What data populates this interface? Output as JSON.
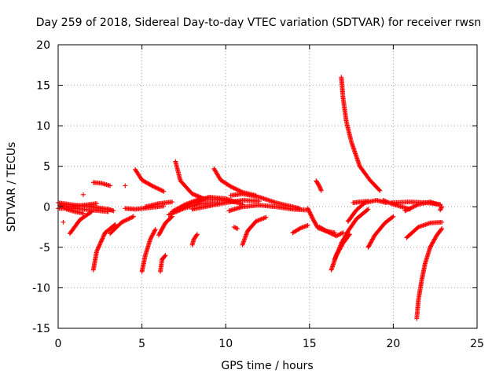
{
  "chart_data": {
    "type": "scatter",
    "title": "Day 259 of 2018, Sidereal Day-to-day VTEC variation (SDTVAR) for receiver rwsn",
    "xlabel": "GPS time / hours",
    "ylabel": "SDTVAR / TECUs",
    "xlim": [
      0,
      25
    ],
    "ylim": [
      -15,
      20
    ],
    "xticks": [
      0,
      5,
      10,
      15,
      20,
      25
    ],
    "yticks": [
      -15,
      -10,
      -5,
      0,
      5,
      10,
      15,
      20
    ],
    "grid": true,
    "marker": "+",
    "color": "#ff0000",
    "arcs": [
      {
        "name": "arc-1",
        "points": [
          [
            0.0,
            0.5
          ],
          [
            1.0,
            0.2
          ],
          [
            2.0,
            0.0
          ],
          [
            3.0,
            -0.3
          ],
          [
            3.3,
            -0.5
          ]
        ]
      },
      {
        "name": "arc-2",
        "points": [
          [
            0.0,
            -0.2
          ],
          [
            1.0,
            -0.2
          ],
          [
            2.0,
            -0.4
          ],
          [
            3.0,
            -0.6
          ]
        ]
      },
      {
        "name": "arc-3",
        "points": [
          [
            0.1,
            0.2
          ],
          [
            0.7,
            0.0
          ],
          [
            1.5,
            0.2
          ],
          [
            2.3,
            0.4
          ]
        ]
      },
      {
        "name": "arc-4",
        "points": [
          [
            0.5,
            -0.3
          ],
          [
            1.0,
            -0.6
          ],
          [
            1.5,
            -0.8
          ]
        ]
      },
      {
        "name": "arc-5",
        "points": [
          [
            0.7,
            -3.3
          ],
          [
            1.3,
            -1.6
          ],
          [
            2.0,
            -0.6
          ]
        ]
      },
      {
        "name": "arc-6",
        "points": [
          [
            2.1,
            -7.8
          ],
          [
            2.3,
            -5.5
          ],
          [
            2.8,
            -3.2
          ],
          [
            3.4,
            -2.2
          ]
        ]
      },
      {
        "name": "arc-7",
        "points": [
          [
            2.1,
            3.0
          ],
          [
            2.6,
            2.9
          ],
          [
            3.1,
            2.6
          ]
        ]
      },
      {
        "name": "arc-8",
        "points": [
          [
            3.1,
            -3.3
          ],
          [
            3.8,
            -1.9
          ],
          [
            4.5,
            -1.2
          ]
        ]
      },
      {
        "name": "arc-9",
        "points": [
          [
            4.0,
            -0.2
          ],
          [
            4.6,
            -0.3
          ],
          [
            5.5,
            -0.1
          ],
          [
            6.3,
            0.1
          ]
        ]
      },
      {
        "name": "arc-10",
        "points": [
          [
            4.6,
            4.6
          ],
          [
            5.0,
            3.3
          ],
          [
            5.6,
            2.6
          ],
          [
            6.3,
            1.9
          ]
        ]
      },
      {
        "name": "arc-11",
        "points": [
          [
            5.0,
            -8.0
          ],
          [
            5.2,
            -6.0
          ],
          [
            5.5,
            -4.0
          ],
          [
            5.8,
            -2.8
          ]
        ]
      },
      {
        "name": "arc-12",
        "points": [
          [
            5.2,
            0.0
          ],
          [
            6.0,
            0.4
          ],
          [
            6.8,
            0.6
          ]
        ]
      },
      {
        "name": "arc-13",
        "points": [
          [
            6.0,
            -3.5
          ],
          [
            6.4,
            -2.0
          ],
          [
            6.8,
            -1.2
          ]
        ]
      },
      {
        "name": "arc-14",
        "points": [
          [
            6.1,
            -8.0
          ],
          [
            6.2,
            -6.5
          ],
          [
            6.4,
            -6.0
          ]
        ]
      },
      {
        "name": "arc-15",
        "points": [
          [
            7.0,
            5.6
          ],
          [
            7.3,
            3.2
          ],
          [
            8.0,
            1.6
          ],
          [
            8.7,
            1.0
          ]
        ]
      },
      {
        "name": "arc-16",
        "points": [
          [
            6.8,
            -0.6
          ],
          [
            7.6,
            0.3
          ],
          [
            8.5,
            1.0
          ],
          [
            9.5,
            0.9
          ],
          [
            10.5,
            0.6
          ]
        ]
      },
      {
        "name": "arc-17",
        "points": [
          [
            7.4,
            0.0
          ],
          [
            8.2,
            0.6
          ],
          [
            9.0,
            1.2
          ],
          [
            10.0,
            1.0
          ],
          [
            11.0,
            0.3
          ]
        ]
      },
      {
        "name": "arc-18",
        "points": [
          [
            6.6,
            -1.0
          ],
          [
            7.5,
            -0.2
          ],
          [
            8.5,
            0.4
          ],
          [
            9.5,
            0.5
          ]
        ]
      },
      {
        "name": "arc-19",
        "points": [
          [
            8.0,
            -0.3
          ],
          [
            9.0,
            0.1
          ],
          [
            10.0,
            0.5
          ],
          [
            11.0,
            0.8
          ],
          [
            12.0,
            0.7
          ]
        ]
      },
      {
        "name": "arc-20",
        "points": [
          [
            8.0,
            -4.7
          ],
          [
            8.1,
            -4.0
          ],
          [
            8.3,
            -3.4
          ]
        ]
      },
      {
        "name": "arc-21",
        "points": [
          [
            9.3,
            4.7
          ],
          [
            9.7,
            3.3
          ],
          [
            10.3,
            2.5
          ],
          [
            11.0,
            1.8
          ],
          [
            11.8,
            1.4
          ]
        ]
      },
      {
        "name": "arc-22",
        "points": [
          [
            10.3,
            1.4
          ],
          [
            11.0,
            1.6
          ],
          [
            12.0,
            1.2
          ],
          [
            13.0,
            0.5
          ],
          [
            14.0,
            0.0
          ],
          [
            14.4,
            -0.2
          ]
        ]
      },
      {
        "name": "arc-23",
        "points": [
          [
            10.5,
            -2.5
          ],
          [
            10.7,
            -2.7
          ]
        ]
      },
      {
        "name": "arc-24",
        "points": [
          [
            10.2,
            -0.5
          ],
          [
            11.0,
            0.0
          ],
          [
            12.0,
            0.2
          ],
          [
            13.0,
            0.0
          ],
          [
            14.0,
            -0.3
          ],
          [
            14.8,
            -0.4
          ]
        ]
      },
      {
        "name": "arc-25",
        "points": [
          [
            11.0,
            -4.7
          ],
          [
            11.3,
            -3.0
          ],
          [
            11.8,
            -1.8
          ],
          [
            12.4,
            -1.3
          ]
        ]
      },
      {
        "name": "arc-26",
        "points": [
          [
            14.0,
            -3.2
          ],
          [
            14.5,
            -2.6
          ],
          [
            14.9,
            -2.3
          ]
        ]
      },
      {
        "name": "arc-27",
        "points": [
          [
            14.9,
            -0.2
          ],
          [
            15.2,
            -1.5
          ],
          [
            15.5,
            -2.6
          ],
          [
            16.0,
            -3.0
          ],
          [
            16.5,
            -3.2
          ]
        ]
      },
      {
        "name": "arc-28",
        "points": [
          [
            15.4,
            3.2
          ],
          [
            15.6,
            2.5
          ],
          [
            15.7,
            2.0
          ]
        ]
      },
      {
        "name": "arc-29",
        "points": [
          [
            15.6,
            -2.5
          ],
          [
            16.1,
            -3.1
          ],
          [
            16.6,
            -3.6
          ],
          [
            17.0,
            -3.2
          ]
        ]
      },
      {
        "name": "arc-30",
        "points": [
          [
            16.3,
            -7.8
          ],
          [
            16.6,
            -6.0
          ],
          [
            17.0,
            -4.5
          ],
          [
            17.4,
            -3.4
          ]
        ]
      },
      {
        "name": "arc-31",
        "points": [
          [
            16.5,
            -6.5
          ],
          [
            16.9,
            -4.5
          ],
          [
            17.3,
            -3.0
          ],
          [
            17.8,
            -1.5
          ],
          [
            18.5,
            -0.3
          ]
        ]
      },
      {
        "name": "arc-32",
        "points": [
          [
            16.9,
            16.0
          ],
          [
            17.0,
            13.5
          ],
          [
            17.2,
            10.5
          ],
          [
            17.5,
            8.0
          ],
          [
            18.0,
            5.0
          ],
          [
            18.6,
            3.3
          ],
          [
            19.2,
            2.0
          ]
        ]
      },
      {
        "name": "arc-33",
        "points": [
          [
            17.3,
            -1.8
          ],
          [
            17.8,
            -0.4
          ],
          [
            18.3,
            0.5
          ],
          [
            19.0,
            0.8
          ],
          [
            19.6,
            0.5
          ]
        ]
      },
      {
        "name": "arc-34",
        "points": [
          [
            17.6,
            0.5
          ],
          [
            18.0,
            0.6
          ],
          [
            18.5,
            0.7
          ]
        ]
      },
      {
        "name": "arc-35",
        "points": [
          [
            18.5,
            -5.0
          ],
          [
            18.9,
            -3.5
          ],
          [
            19.5,
            -2.0
          ],
          [
            20.0,
            -1.2
          ]
        ]
      },
      {
        "name": "arc-36",
        "points": [
          [
            19.4,
            0.8
          ],
          [
            20.0,
            0.3
          ],
          [
            20.5,
            0.0
          ],
          [
            21.0,
            -0.3
          ]
        ]
      },
      {
        "name": "arc-37",
        "points": [
          [
            19.9,
            0.5
          ],
          [
            21.0,
            0.6
          ],
          [
            22.0,
            0.5
          ],
          [
            22.8,
            0.3
          ]
        ]
      },
      {
        "name": "arc-38",
        "points": [
          [
            20.7,
            -0.5
          ],
          [
            21.5,
            0.3
          ],
          [
            22.2,
            0.6
          ],
          [
            22.8,
            0.2
          ]
        ]
      },
      {
        "name": "arc-39",
        "points": [
          [
            21.4,
            -13.8
          ],
          [
            21.5,
            -11.5
          ],
          [
            21.7,
            -9.0
          ],
          [
            21.9,
            -7.0
          ],
          [
            22.2,
            -5.0
          ],
          [
            22.6,
            -3.5
          ],
          [
            22.9,
            -2.7
          ]
        ]
      },
      {
        "name": "arc-40",
        "points": [
          [
            20.8,
            -3.8
          ],
          [
            21.5,
            -2.5
          ],
          [
            22.2,
            -2.0
          ],
          [
            22.9,
            -1.9
          ]
        ]
      },
      {
        "name": "arc-41",
        "points": [
          [
            22.8,
            -0.4
          ],
          [
            22.9,
            0.0
          ]
        ]
      },
      {
        "name": "arc-42",
        "points": [
          [
            1.5,
            1.5
          ],
          [
            4.0,
            2.6
          ],
          [
            0.3,
            -1.9
          ]
        ]
      }
    ]
  }
}
